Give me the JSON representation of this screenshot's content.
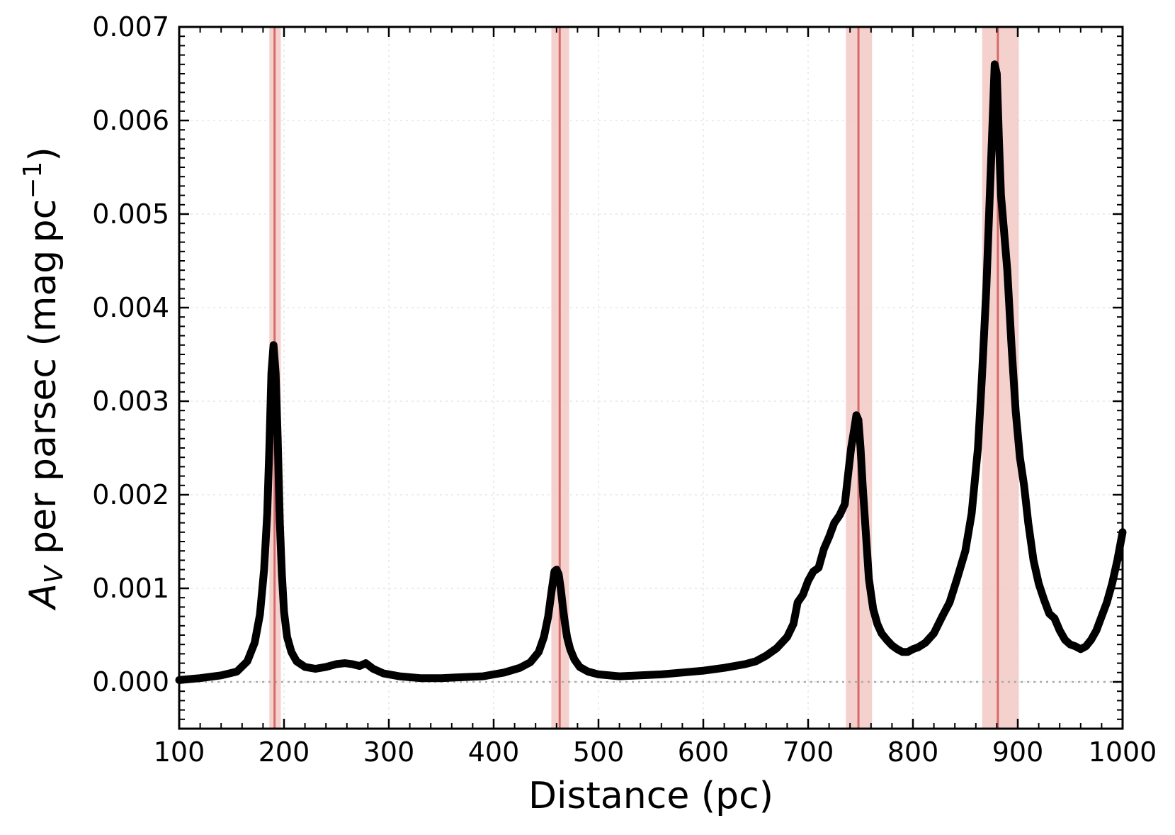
{
  "chart_data": {
    "type": "line",
    "xlabel": "Distance (pc)",
    "ylabel": {
      "prefix_italic": "A",
      "subscript": "V",
      "middle": " per parsec (mag pc",
      "superscript": "−1",
      "suffix": ")"
    },
    "xlim": [
      100,
      1000
    ],
    "ylim": [
      -0.0005,
      0.007
    ],
    "xticks": [
      100,
      200,
      300,
      400,
      500,
      600,
      700,
      800,
      900,
      1000
    ],
    "xtick_labels": [
      "100",
      "200",
      "300",
      "400",
      "500",
      "600",
      "700",
      "800",
      "900",
      "1000"
    ],
    "yticks": [
      0,
      0.001,
      0.002,
      0.003,
      0.004,
      0.005,
      0.006,
      0.007
    ],
    "ytick_labels": [
      "0.000",
      "0.001",
      "0.002",
      "0.003",
      "0.004",
      "0.005",
      "0.006",
      "0.007"
    ],
    "grid": true,
    "zero_line": true,
    "colors": {
      "line": "#000000",
      "marker": "#d66a6a",
      "band": "#f2c6c2",
      "grid": "#e6e6e6",
      "zero": "#aaaaaa"
    },
    "series": [
      {
        "x": [
          100,
          120,
          140,
          155,
          165,
          172,
          177,
          181,
          184,
          186,
          188,
          190,
          192,
          194,
          196,
          198,
          200,
          203,
          207,
          212,
          220,
          230,
          240,
          250,
          258,
          265,
          272,
          278,
          285,
          295,
          310,
          330,
          350,
          370,
          390,
          410,
          425,
          435,
          443,
          448,
          452,
          455,
          458,
          460,
          462,
          464,
          466,
          468,
          470,
          473,
          477,
          482,
          490,
          500,
          520,
          540,
          560,
          580,
          600,
          620,
          640,
          650,
          660,
          670,
          680,
          686,
          690,
          695,
          700,
          705,
          710,
          715,
          720,
          725,
          730,
          735,
          738,
          741,
          744,
          746,
          748,
          750,
          752,
          755,
          758,
          762,
          766,
          770,
          775,
          780,
          785,
          790,
          795,
          800,
          805,
          812,
          820,
          828,
          835,
          842,
          850,
          856,
          862,
          866,
          870,
          873,
          876,
          878,
          880,
          882,
          884,
          887,
          890,
          894,
          898,
          902,
          906,
          910,
          915,
          920,
          925,
          930,
          935,
          940,
          945,
          950,
          955,
          960,
          965,
          970,
          975,
          980,
          985,
          990,
          995,
          1000
        ],
        "y": [
          2e-05,
          4e-05,
          7e-05,
          0.00011,
          0.00022,
          0.00042,
          0.00072,
          0.0012,
          0.0018,
          0.0025,
          0.0033,
          0.0036,
          0.0033,
          0.0026,
          0.0017,
          0.00115,
          0.00075,
          0.00048,
          0.00032,
          0.00022,
          0.00016,
          0.00014,
          0.00016,
          0.00019,
          0.0002,
          0.00019,
          0.00017,
          0.0002,
          0.00014,
          9e-05,
          6e-05,
          4e-05,
          4e-05,
          5e-05,
          6e-05,
          0.0001,
          0.00015,
          0.00021,
          0.00032,
          0.00048,
          0.0007,
          0.00095,
          0.00118,
          0.0012,
          0.00115,
          0.001,
          0.0008,
          0.00063,
          0.00048,
          0.00035,
          0.00024,
          0.00016,
          0.00011,
          8e-05,
          6e-05,
          7e-05,
          8e-05,
          0.0001,
          0.00012,
          0.00015,
          0.00019,
          0.00022,
          0.00028,
          0.00036,
          0.00048,
          0.00062,
          0.00085,
          0.00093,
          0.00108,
          0.00118,
          0.00122,
          0.00142,
          0.00155,
          0.0017,
          0.00178,
          0.0019,
          0.0022,
          0.0025,
          0.0027,
          0.00285,
          0.0028,
          0.0025,
          0.0021,
          0.0016,
          0.0011,
          0.00078,
          0.00062,
          0.00052,
          0.00045,
          0.00039,
          0.00035,
          0.00032,
          0.00032,
          0.00035,
          0.00037,
          0.00042,
          0.00052,
          0.0007,
          0.00085,
          0.0011,
          0.0014,
          0.0018,
          0.0025,
          0.0033,
          0.0042,
          0.0051,
          0.006,
          0.0066,
          0.0065,
          0.0058,
          0.0052,
          0.0048,
          0.0044,
          0.0036,
          0.0029,
          0.0024,
          0.0021,
          0.0017,
          0.0013,
          0.00105,
          0.00088,
          0.00073,
          0.00068,
          0.00055,
          0.00045,
          0.0004,
          0.00038,
          0.00035,
          0.00038,
          0.00045,
          0.00055,
          0.0007,
          0.00085,
          0.00105,
          0.0013,
          0.0016
        ]
      }
    ],
    "markers": [
      {
        "x": 191,
        "band": [
          186,
          197
        ]
      },
      {
        "x": 463,
        "band": [
          455,
          472
        ]
      },
      {
        "x": 748,
        "band": [
          736,
          761
        ]
      },
      {
        "x": 881,
        "band": [
          866,
          901
        ]
      }
    ]
  }
}
